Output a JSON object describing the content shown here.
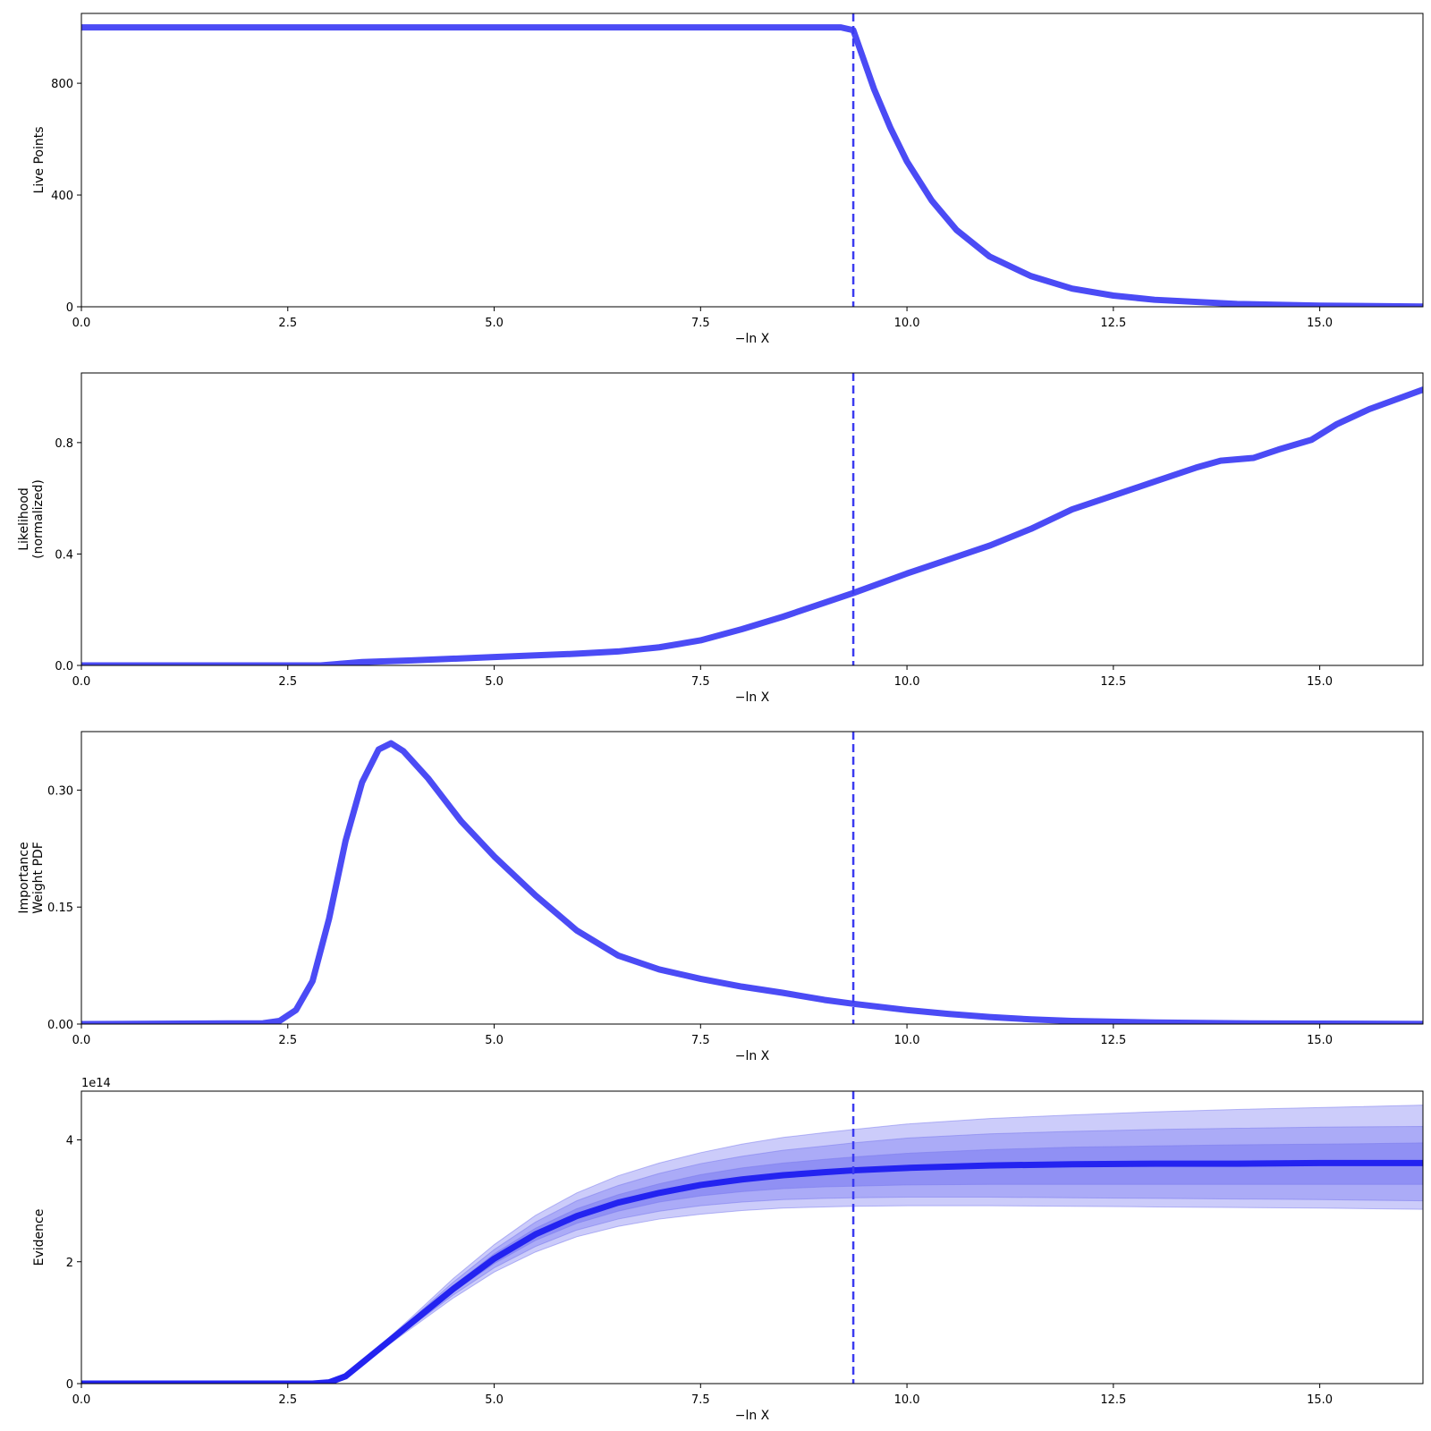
{
  "colors": {
    "line": "#4b4bf5",
    "median": "#2323f0",
    "vline": "#3b3bf0",
    "band_outer": "#c9c9fa",
    "band_mid": "#a3a3f6",
    "band_inner": "#8a8af3"
  },
  "chart_data": [
    {
      "type": "line",
      "ylabel_lines": [
        "Live Points"
      ],
      "xlabel": "−ln X",
      "xlim": [
        0,
        16.25
      ],
      "ylim": [
        0,
        1050
      ],
      "x_ticks": [
        0,
        2.5,
        5,
        7.5,
        10,
        12.5,
        15
      ],
      "x_tick_labels": [
        "0.0",
        "2.5",
        "5.0",
        "7.5",
        "10.0",
        "12.5",
        "15.0"
      ],
      "y_ticks": [
        0,
        400,
        800
      ],
      "y_tick_labels": [
        "0",
        "400",
        "800"
      ],
      "vline_x": 9.35,
      "series": [
        {
          "x": [
            0,
            9.2,
            9.35,
            9.6,
            9.8,
            10.0,
            10.3,
            10.6,
            11.0,
            11.5,
            12.0,
            12.5,
            13.0,
            14.0,
            15.0,
            16.25
          ],
          "y": [
            1000,
            1000,
            990,
            780,
            640,
            520,
            380,
            275,
            180,
            110,
            65,
            40,
            25,
            10,
            4,
            1
          ]
        }
      ]
    },
    {
      "type": "line",
      "ylabel_lines": [
        "Likelihood",
        "(normalized)"
      ],
      "xlabel": "−ln X",
      "xlim": [
        0,
        16.25
      ],
      "ylim": [
        0,
        1.05
      ],
      "x_ticks": [
        0,
        2.5,
        5,
        7.5,
        10,
        12.5,
        15
      ],
      "x_tick_labels": [
        "0.0",
        "2.5",
        "5.0",
        "7.5",
        "10.0",
        "12.5",
        "15.0"
      ],
      "y_ticks": [
        0,
        0.4,
        0.8
      ],
      "y_tick_labels": [
        "0.0",
        "0.4",
        "0.8"
      ],
      "vline_x": 9.35,
      "series": [
        {
          "x": [
            0,
            2.9,
            3.1,
            3.4,
            4.0,
            5.0,
            6.0,
            6.5,
            7.0,
            7.5,
            8.0,
            8.5,
            9.0,
            9.35,
            10.0,
            10.5,
            11.0,
            11.5,
            12.0,
            12.5,
            13.0,
            13.5,
            13.8,
            14.2,
            14.5,
            14.9,
            15.2,
            15.6,
            16.25
          ],
          "y": [
            0.0,
            0.0,
            0.005,
            0.012,
            0.018,
            0.03,
            0.042,
            0.05,
            0.065,
            0.09,
            0.13,
            0.175,
            0.225,
            0.26,
            0.33,
            0.38,
            0.43,
            0.49,
            0.56,
            0.61,
            0.66,
            0.71,
            0.735,
            0.745,
            0.775,
            0.81,
            0.865,
            0.92,
            0.99
          ]
        }
      ]
    },
    {
      "type": "line",
      "ylabel_lines": [
        "Importance",
        "Weight PDF"
      ],
      "xlabel": "−ln X",
      "xlim": [
        0,
        16.25
      ],
      "ylim": [
        0,
        0.375
      ],
      "x_ticks": [
        0,
        2.5,
        5,
        7.5,
        10,
        12.5,
        15
      ],
      "x_tick_labels": [
        "0.0",
        "2.5",
        "5.0",
        "7.5",
        "10.0",
        "12.5",
        "15.0"
      ],
      "y_ticks": [
        0,
        0.15,
        0.3
      ],
      "y_tick_labels": [
        "0.00",
        "0.15",
        "0.30"
      ],
      "vline_x": 9.35,
      "series": [
        {
          "x": [
            0,
            2.2,
            2.4,
            2.6,
            2.8,
            3.0,
            3.2,
            3.4,
            3.6,
            3.75,
            3.9,
            4.2,
            4.6,
            5.0,
            5.5,
            6.0,
            6.5,
            7.0,
            7.5,
            8.0,
            8.5,
            9.0,
            9.35,
            10.0,
            10.5,
            11.0,
            11.5,
            12.0,
            12.5,
            13.0,
            14.0,
            15.0,
            16.25
          ],
          "y": [
            0.0,
            0.001,
            0.004,
            0.018,
            0.055,
            0.135,
            0.235,
            0.31,
            0.352,
            0.36,
            0.35,
            0.315,
            0.26,
            0.215,
            0.165,
            0.12,
            0.088,
            0.07,
            0.058,
            0.048,
            0.04,
            0.031,
            0.026,
            0.018,
            0.013,
            0.009,
            0.006,
            0.004,
            0.003,
            0.002,
            0.001,
            0.0005,
            0.0002
          ]
        }
      ]
    },
    {
      "type": "area",
      "ylabel_lines": [
        "Evidence"
      ],
      "xlabel": "−ln X",
      "offset_text": "1e14",
      "xlim": [
        0,
        16.25
      ],
      "ylim": [
        0,
        4.8
      ],
      "x_ticks": [
        0,
        2.5,
        5,
        7.5,
        10,
        12.5,
        15
      ],
      "x_tick_labels": [
        "0.0",
        "2.5",
        "5.0",
        "7.5",
        "10.0",
        "12.5",
        "15.0"
      ],
      "y_ticks": [
        0,
        2,
        4
      ],
      "y_tick_labels": [
        "0",
        "2",
        "4"
      ],
      "vline_x": 9.35,
      "x": [
        0,
        2.8,
        3.0,
        3.2,
        3.5,
        4.0,
        4.5,
        5.0,
        5.5,
        6.0,
        6.5,
        7.0,
        7.5,
        8.0,
        8.5,
        9.0,
        9.35,
        10.0,
        11.0,
        12.0,
        13.0,
        14.0,
        15.0,
        16.25
      ],
      "median": [
        0,
        0,
        0.02,
        0.12,
        0.45,
        1.0,
        1.55,
        2.05,
        2.45,
        2.75,
        2.97,
        3.13,
        3.26,
        3.35,
        3.42,
        3.47,
        3.5,
        3.54,
        3.58,
        3.6,
        3.61,
        3.61,
        3.62,
        3.62
      ],
      "band_1sigma_low": [
        0,
        0,
        0.02,
        0.12,
        0.44,
        0.97,
        1.5,
        1.97,
        2.35,
        2.63,
        2.83,
        2.98,
        3.08,
        3.15,
        3.2,
        3.23,
        3.24,
        3.26,
        3.27,
        3.27,
        3.27,
        3.27,
        3.27,
        3.27
      ],
      "band_1sigma_high": [
        0,
        0,
        0.02,
        0.12,
        0.46,
        1.03,
        1.6,
        2.13,
        2.55,
        2.87,
        3.1,
        3.28,
        3.43,
        3.54,
        3.62,
        3.68,
        3.72,
        3.78,
        3.84,
        3.88,
        3.9,
        3.92,
        3.93,
        3.95
      ],
      "band_2sigma_low": [
        0,
        0,
        0.02,
        0.11,
        0.43,
        0.94,
        1.45,
        1.9,
        2.25,
        2.52,
        2.7,
        2.83,
        2.92,
        2.98,
        3.02,
        3.04,
        3.05,
        3.06,
        3.06,
        3.05,
        3.04,
        3.03,
        3.02,
        3.0
      ],
      "band_2sigma_high": [
        0,
        0,
        0.02,
        0.13,
        0.47,
        1.06,
        1.66,
        2.2,
        2.65,
        3.0,
        3.25,
        3.45,
        3.61,
        3.73,
        3.83,
        3.9,
        3.95,
        4.03,
        4.1,
        4.14,
        4.17,
        4.19,
        4.21,
        4.22
      ],
      "band_3sigma_low": [
        0,
        0,
        0.02,
        0.11,
        0.42,
        0.91,
        1.4,
        1.83,
        2.16,
        2.41,
        2.58,
        2.7,
        2.78,
        2.84,
        2.88,
        2.9,
        2.91,
        2.92,
        2.92,
        2.91,
        2.9,
        2.89,
        2.88,
        2.86
      ],
      "band_3sigma_high": [
        0,
        0,
        0.02,
        0.13,
        0.48,
        1.09,
        1.72,
        2.28,
        2.76,
        3.13,
        3.41,
        3.62,
        3.79,
        3.93,
        4.04,
        4.12,
        4.17,
        4.26,
        4.35,
        4.41,
        4.46,
        4.5,
        4.53,
        4.57
      ]
    }
  ]
}
